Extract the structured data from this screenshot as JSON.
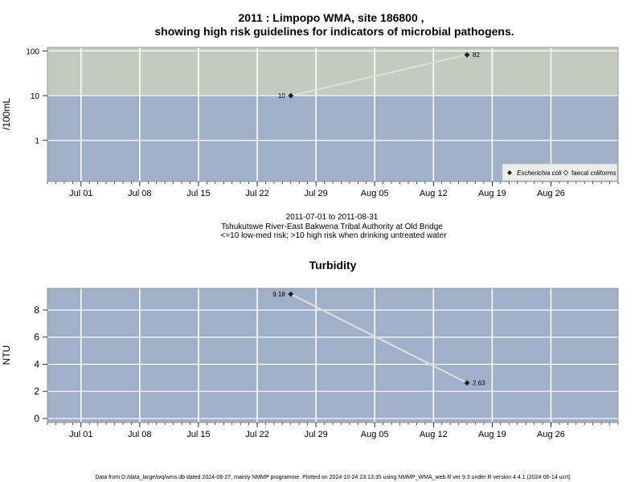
{
  "chart_data": [
    {
      "type": "line",
      "title": "2011 : Limpopo WMA, site 186800 ,",
      "subtitle": "showing high risk guidelines for indicators of microbial pathogens.",
      "ylabel": "/100mL",
      "yscale": "log",
      "ylim": [
        0.12,
        120
      ],
      "yticks": [
        "100",
        "10",
        "1"
      ],
      "xlim": [
        "2011-06-27",
        "2011-09-03"
      ],
      "xticks": [
        "Jul 01",
        "Jul 08",
        "Jul 15",
        "Jul 22",
        "Jul 29",
        "Aug 05",
        "Aug 12",
        "Aug 19",
        "Aug 26"
      ],
      "grid": true,
      "threshold": 10,
      "threshold_colors": {
        "high": "#c2cbbe",
        "low": "#a1b0c9"
      },
      "series": [
        {
          "name": "Escherichia coli",
          "x": [
            "2011-07-26",
            "2011-08-16"
          ],
          "values": [
            10,
            82
          ],
          "labels": [
            "10",
            "82"
          ],
          "color": "#dddddd"
        }
      ],
      "legend": {
        "position": "bottom-right",
        "entries": [
          "Escherichia coli",
          "faecal coliforms"
        ]
      },
      "caption": [
        "2011-07-01 to 2011-08-31",
        "Tshukutswe River-East Bakwena Tribal Authority at Old Bridge",
        "<=10 low-med risk; >10 high risk when drinking untreated water"
      ]
    },
    {
      "type": "line",
      "title": "Turbidity",
      "ylabel": "NTU",
      "ylim": [
        -0.3,
        9.6
      ],
      "yticks": [
        "0",
        "2",
        "4",
        "6",
        "8"
      ],
      "xlim": [
        "2011-06-27",
        "2011-09-03"
      ],
      "xticks": [
        "Jul 01",
        "Jul 08",
        "Jul 15",
        "Jul 22",
        "Jul 29",
        "Aug 05",
        "Aug 12",
        "Aug 19",
        "Aug 26"
      ],
      "grid": true,
      "background": "#a1b0c9",
      "series": [
        {
          "name": "Turbidity",
          "x": [
            "2011-07-26",
            "2011-08-16"
          ],
          "values": [
            9.18,
            2.63
          ],
          "labels": [
            "9.18",
            "2.63"
          ],
          "color": "#dddddd"
        }
      ]
    }
  ],
  "footer": "Data from D:/data_large/wq/wms.db dated 2024-08-27, mainly NMMP programme. Plotted on 2024-10-24 23:13:35 using NMMP_WMA_web.R ver 9.3 under R version 4.4.1 (2024-06-14 ucrt)"
}
